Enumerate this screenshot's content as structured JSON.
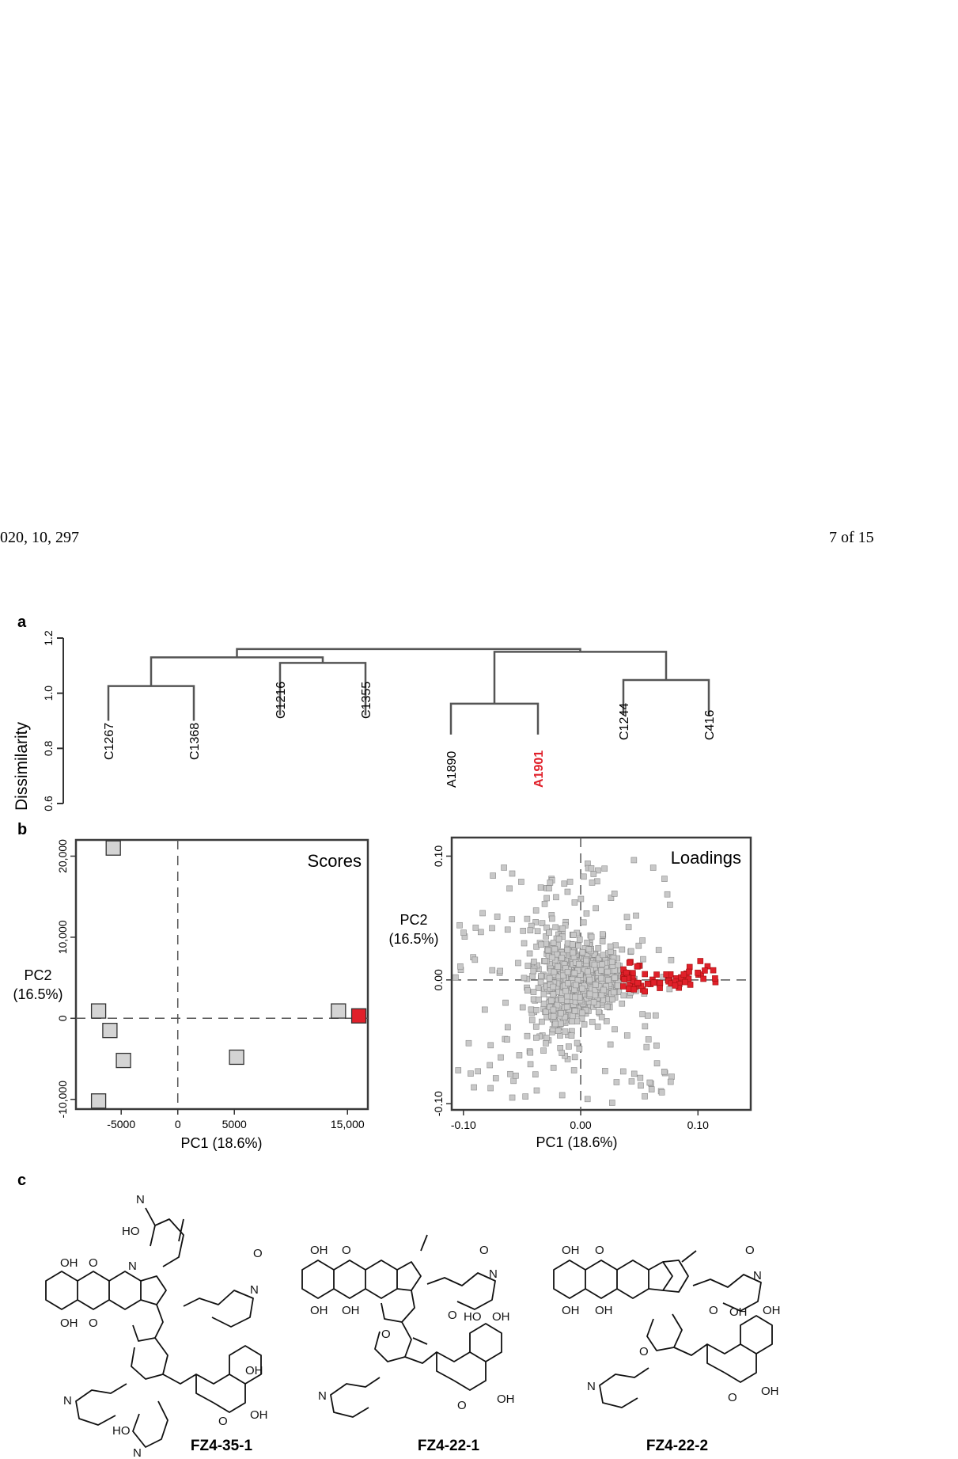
{
  "header": {
    "left": "020, 10, 297",
    "right": "7 of 15"
  },
  "panel_labels": {
    "a": "a",
    "b": "b",
    "c": "c"
  },
  "chart_data": [
    {
      "type": "dendrogram",
      "ylabel": "Dissimilarity",
      "ylim": [
        0.6,
        1.2
      ],
      "yticks": [
        "0.6",
        "0.8",
        "1.0",
        "1.2"
      ],
      "leaves": [
        "C1267",
        "C1368",
        "C1216",
        "C1355",
        "A1890",
        "A1901",
        "C1244",
        "C416"
      ],
      "highlight_leaf": "A1901",
      "highlight_color": "#e0202a",
      "merges": [
        {
          "members": [
            "C1267",
            "C1368"
          ],
          "height": 1.026
        },
        {
          "members": [
            "C1216",
            "C1355"
          ],
          "height": 1.11
        },
        {
          "members": [
            "A1890",
            "A1901"
          ],
          "height": 0.962
        },
        {
          "members": [
            "C1244",
            "C416"
          ],
          "height": 1.048
        },
        {
          "members": [
            "A1890-A1901",
            "C1244-C416"
          ],
          "height": 1.15
        },
        {
          "members": [
            "C1267-C1368",
            "C1216-C1355"
          ],
          "height": 1.13
        },
        {
          "members": [
            "left",
            "right"
          ],
          "height": 1.16
        },
        {
          "members": [
            "root"
          ],
          "height": 1.18
        }
      ]
    },
    {
      "type": "scatter",
      "title": "Scores",
      "xlabel": "PC1 (18.6%)",
      "ylabel": "PC2",
      "ylabel2": "(16.5%)",
      "xticks": [
        "-5000",
        "0",
        "5000",
        "15,000"
      ],
      "yticks": [
        "-10,000",
        "0",
        "10,000",
        "20,000"
      ],
      "xlim": [
        -9000,
        16800
      ],
      "ylim": [
        -11200,
        22000
      ],
      "points": [
        {
          "x": -5700,
          "y": 21000
        },
        {
          "x": -7000,
          "y": 900
        },
        {
          "x": -6000,
          "y": -1500
        },
        {
          "x": -4800,
          "y": -5200
        },
        {
          "x": -7000,
          "y": -10200
        },
        {
          "x": 5200,
          "y": -4800
        },
        {
          "x": 14200,
          "y": 900
        },
        {
          "x": 16000,
          "y": 300,
          "highlight": true
        }
      ],
      "highlight_color": "#e0202a"
    },
    {
      "type": "scatter",
      "title": "Loadings",
      "xlabel": "PC1 (18.6%)",
      "ylabel": "PC2",
      "ylabel2": "(16.5%)",
      "xticks": [
        "-0.10",
        "0.00",
        "0.10"
      ],
      "yticks": [
        "-0.10",
        "0.00",
        "0.10"
      ],
      "xlim": [
        -0.11,
        0.145
      ],
      "ylim": [
        -0.105,
        0.115
      ],
      "n_points_approx": 1200,
      "highlight_color": "#e0202a"
    }
  ],
  "structures": [
    {
      "name": "FZ4-35-1"
    },
    {
      "name": "FZ4-22-1"
    },
    {
      "name": "FZ4-22-2"
    }
  ],
  "atom_labels": {
    "OH": "OH",
    "O": "O",
    "N": "N",
    "N2": "N",
    "HO": "HO"
  }
}
